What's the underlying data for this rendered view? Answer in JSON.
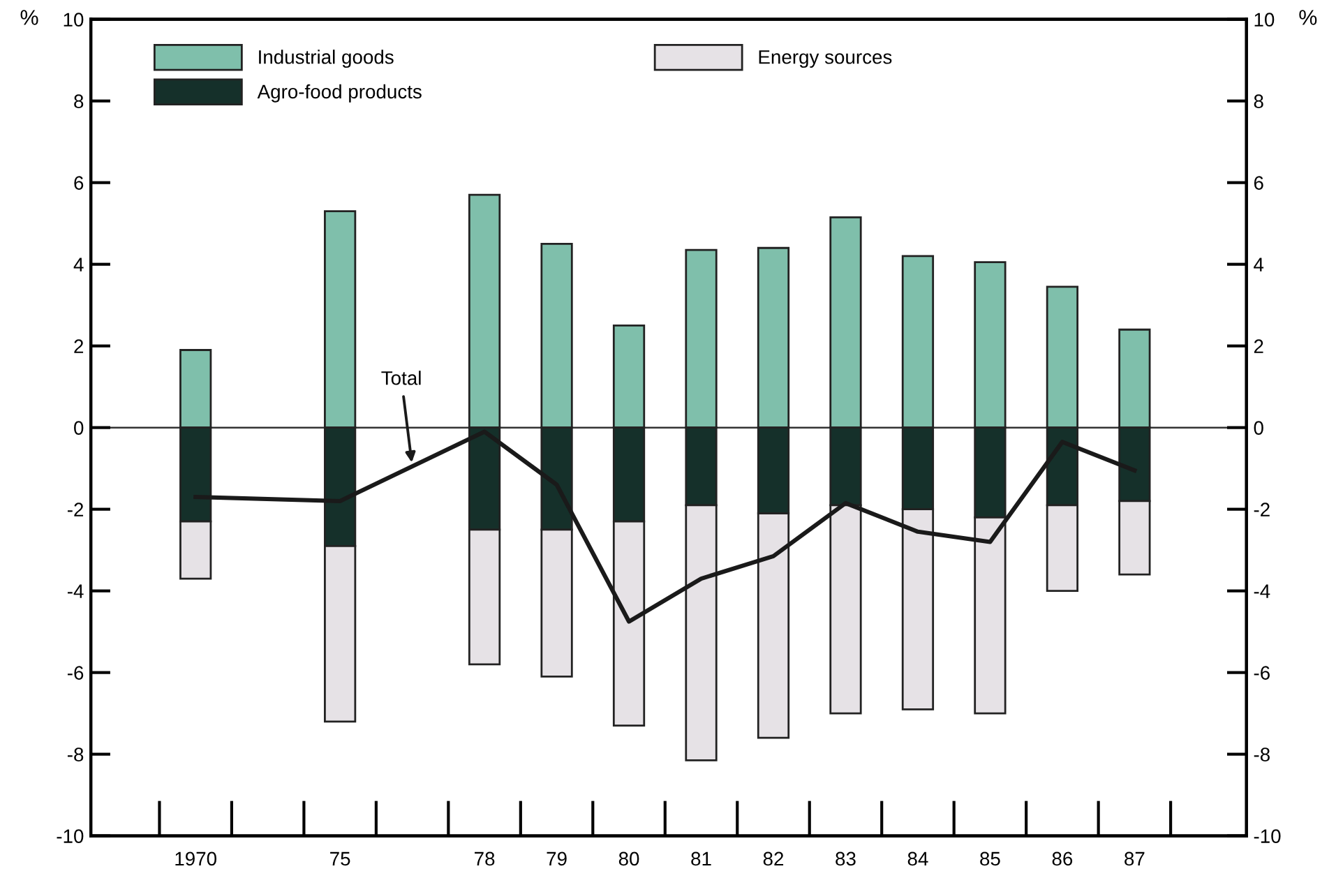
{
  "chart_data": {
    "type": "bar",
    "stacked": true,
    "ylabel": "%",
    "y2label": "%",
    "categories": [
      "1970",
      null,
      "75",
      null,
      "78",
      "79",
      "80",
      "81",
      "82",
      "83",
      "84",
      "85",
      "86",
      "87"
    ],
    "series": [
      {
        "name": "Industrial goods",
        "color": "#7fbfab",
        "values": [
          1.9,
          null,
          5.3,
          null,
          5.7,
          4.5,
          2.5,
          4.35,
          4.4,
          5.15,
          4.2,
          4.05,
          3.45,
          2.4
        ]
      },
      {
        "name": "Agro-food products",
        "color": "#15302a",
        "values": [
          -2.3,
          null,
          -2.9,
          null,
          -2.5,
          -2.5,
          -2.3,
          -1.9,
          -2.1,
          -1.9,
          -2.0,
          -2.2,
          -1.9,
          -1.8
        ]
      },
      {
        "name": "Energy sources",
        "color": "#e6e2e6",
        "values": [
          -1.4,
          null,
          -4.3,
          null,
          -3.3,
          -3.6,
          -5.0,
          -6.25,
          -5.5,
          -5.1,
          -4.9,
          -4.8,
          -2.1,
          -1.8
        ]
      },
      {
        "name": "Total",
        "type": "line",
        "color": "#1a1a1a",
        "values": [
          -1.7,
          null,
          -1.8,
          null,
          -0.1,
          -1.4,
          -4.75,
          -3.7,
          -3.15,
          -1.85,
          -2.55,
          -2.8,
          -0.35,
          -1.05
        ]
      }
    ],
    "ylim": [
      -10,
      10
    ],
    "yticks": [
      -10,
      -8,
      -6,
      -4,
      -2,
      0,
      2,
      4,
      6,
      8,
      10
    ],
    "y2lim": [
      -10,
      10
    ],
    "y2ticks": [
      -10,
      -8,
      -6,
      -4,
      -2,
      0,
      2,
      4,
      6,
      8,
      10
    ],
    "ref_lines": [
      {
        "axis": "y",
        "value": 0
      }
    ],
    "legend": "top left",
    "grid": false
  }
}
